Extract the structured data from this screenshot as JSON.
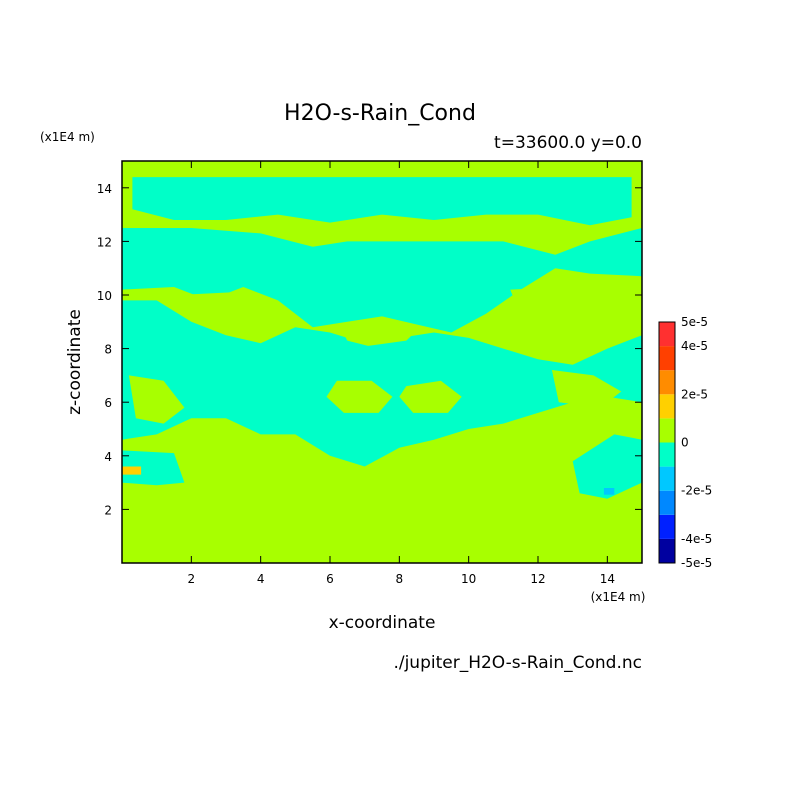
{
  "chart_data": {
    "type": "heatmap",
    "title": "H2O-s-Rain_Cond",
    "subtitle": "t=33600.0 y=0.0",
    "xlabel": "x-coordinate",
    "ylabel": "z-coordinate",
    "x_unit": "(x1E4 m)",
    "y_unit": "(x1E4 m)",
    "file_label": "./jupiter_H2O-s-Rain_Cond.nc",
    "xlim": [
      0,
      15
    ],
    "ylim": [
      0,
      15
    ],
    "x_ticks": [
      2,
      4,
      6,
      8,
      10,
      12,
      14
    ],
    "y_ticks": [
      2,
      4,
      6,
      8,
      10,
      12,
      14
    ],
    "colorbar": {
      "levels": [
        -5e-05,
        -4e-05,
        -3e-05,
        -2e-05,
        -1e-05,
        0,
        1e-05,
        2e-05,
        3e-05,
        4e-05,
        5e-05
      ],
      "colors": [
        "#0000a0",
        "#0020ff",
        "#0088ff",
        "#00c8ff",
        "#00ffc8",
        "#a8ff00",
        "#ffd000",
        "#ff8c00",
        "#ff4000",
        "#ff3030"
      ],
      "labels": [
        {
          "value": 5e-05,
          "text": "5e-5"
        },
        {
          "value": 4e-05,
          "text": "4e-5"
        },
        {
          "value": 2e-05,
          "text": "2e-5"
        },
        {
          "value": 0,
          "text": "0"
        },
        {
          "value": -2e-05,
          "text": "-2e-5"
        },
        {
          "value": -4e-05,
          "text": "-4e-5"
        },
        {
          "value": -5e-05,
          "text": "-5e-5"
        }
      ]
    },
    "background_level": 5,
    "regions": [
      {
        "level": 4,
        "points": [
          [
            0.3,
            14.4
          ],
          [
            14.7,
            14.4
          ],
          [
            14.7,
            12.9
          ],
          [
            13.5,
            12.6
          ],
          [
            12,
            13.0
          ],
          [
            10.5,
            13.0
          ],
          [
            9,
            12.8
          ],
          [
            7.5,
            13.0
          ],
          [
            6,
            12.7
          ],
          [
            4.5,
            13.0
          ],
          [
            3,
            12.8
          ],
          [
            1.5,
            12.8
          ],
          [
            0.3,
            13.2
          ]
        ]
      },
      {
        "level": 4,
        "points": [
          [
            0,
            12.5
          ],
          [
            2,
            12.5
          ],
          [
            4,
            12.3
          ],
          [
            5.5,
            11.8
          ],
          [
            6.5,
            12.0
          ],
          [
            8,
            12.0
          ],
          [
            9.5,
            12.0
          ],
          [
            11,
            12.0
          ],
          [
            12.5,
            11.5
          ],
          [
            13.5,
            12.0
          ],
          [
            15,
            12.5
          ],
          [
            15,
            10.7
          ],
          [
            13.5,
            10.8
          ],
          [
            12.5,
            11.0
          ],
          [
            11.5,
            10.2
          ],
          [
            10.5,
            9.3
          ],
          [
            9.5,
            8.6
          ],
          [
            8.5,
            8.9
          ],
          [
            7.5,
            9.2
          ],
          [
            6.5,
            9.0
          ],
          [
            5.5,
            8.8
          ],
          [
            4.5,
            9.8
          ],
          [
            3.5,
            10.3
          ],
          [
            2.5,
            9.8
          ],
          [
            1.5,
            10.3
          ],
          [
            0,
            10.2
          ]
        ]
      },
      {
        "level": 4,
        "points": [
          [
            0,
            9.8
          ],
          [
            1,
            9.8
          ],
          [
            2,
            9.0
          ],
          [
            3,
            8.5
          ],
          [
            4,
            8.2
          ],
          [
            5,
            8.8
          ],
          [
            6,
            8.6
          ],
          [
            7,
            8.2
          ],
          [
            8,
            8.4
          ],
          [
            9,
            8.6
          ],
          [
            10,
            8.4
          ],
          [
            11,
            8.0
          ],
          [
            12,
            7.6
          ],
          [
            13,
            7.4
          ],
          [
            14,
            8.0
          ],
          [
            15,
            8.5
          ],
          [
            15,
            6.0
          ],
          [
            14,
            6.2
          ],
          [
            13,
            6.0
          ],
          [
            12,
            5.6
          ],
          [
            11,
            5.2
          ],
          [
            10,
            5.0
          ],
          [
            9,
            4.6
          ],
          [
            8,
            4.3
          ],
          [
            7,
            3.6
          ],
          [
            6,
            4.0
          ],
          [
            5,
            4.8
          ],
          [
            4,
            4.8
          ],
          [
            3,
            5.4
          ],
          [
            2,
            5.4
          ],
          [
            1,
            4.8
          ],
          [
            0,
            4.6
          ]
        ]
      },
      {
        "level": 4,
        "points": [
          [
            0,
            4.2
          ],
          [
            1.5,
            4.1
          ],
          [
            1.8,
            3.0
          ],
          [
            1.0,
            2.9
          ],
          [
            0,
            3.0
          ]
        ]
      },
      {
        "level": 4,
        "points": [
          [
            13.0,
            3.8
          ],
          [
            14.2,
            4.8
          ],
          [
            15,
            4.6
          ],
          [
            15,
            3.0
          ],
          [
            14.0,
            2.4
          ],
          [
            13.2,
            2.6
          ]
        ]
      },
      {
        "level": 5,
        "points": [
          [
            0.2,
            7.0
          ],
          [
            1.2,
            6.8
          ],
          [
            1.8,
            5.8
          ],
          [
            1.2,
            5.2
          ],
          [
            0.4,
            5.4
          ]
        ]
      },
      {
        "level": 5,
        "points": [
          [
            6.2,
            6.8
          ],
          [
            7.2,
            6.8
          ],
          [
            7.8,
            6.2
          ],
          [
            7.4,
            5.6
          ],
          [
            6.4,
            5.6
          ],
          [
            5.9,
            6.2
          ]
        ]
      },
      {
        "level": 5,
        "points": [
          [
            8.2,
            6.6
          ],
          [
            9.2,
            6.8
          ],
          [
            9.8,
            6.2
          ],
          [
            9.4,
            5.6
          ],
          [
            8.4,
            5.6
          ],
          [
            8.0,
            6.2
          ]
        ]
      },
      {
        "level": 5,
        "points": [
          [
            12.4,
            7.2
          ],
          [
            13.6,
            7.0
          ],
          [
            14.4,
            6.4
          ],
          [
            13.8,
            5.8
          ],
          [
            12.6,
            6.0
          ]
        ]
      },
      {
        "level": 5,
        "points": [
          [
            6.3,
            8.8
          ],
          [
            7.5,
            9.2
          ],
          [
            8.6,
            8.8
          ],
          [
            8.2,
            8.3
          ],
          [
            7.1,
            8.1
          ],
          [
            6.5,
            8.3
          ]
        ]
      },
      {
        "level": 5,
        "points": [
          [
            1.6,
            10.0
          ],
          [
            3.2,
            10.1
          ],
          [
            3.6,
            9.0
          ],
          [
            2.4,
            8.9
          ],
          [
            1.6,
            9.4
          ]
        ]
      },
      {
        "level": 5,
        "points": [
          [
            11.2,
            10.2
          ],
          [
            12.8,
            10.3
          ],
          [
            13.6,
            9.2
          ],
          [
            12.6,
            8.8
          ],
          [
            11.5,
            9.2
          ]
        ]
      },
      {
        "level": 6,
        "points": [
          [
            0,
            3.6
          ],
          [
            0.55,
            3.6
          ],
          [
            0.55,
            3.3
          ],
          [
            0,
            3.3
          ]
        ]
      },
      {
        "level": 3,
        "points": [
          [
            13.9,
            2.8
          ],
          [
            14.2,
            2.8
          ],
          [
            14.2,
            2.55
          ],
          [
            13.9,
            2.55
          ]
        ]
      }
    ]
  }
}
